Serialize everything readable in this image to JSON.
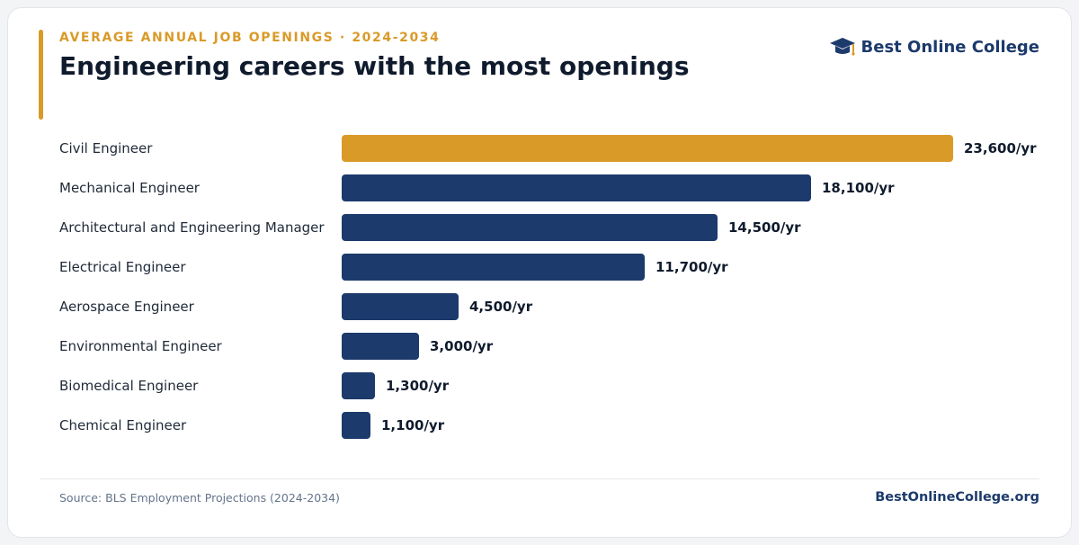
{
  "header": {
    "eyebrow": "AVERAGE ANNUAL JOB OPENINGS · 2024-2034",
    "title": "Engineering careers with the most openings"
  },
  "brand": {
    "name": "Best Online College",
    "icon": "graduation-cap-icon"
  },
  "colors": {
    "accent": "#da9a28",
    "primary": "#1c3a6b",
    "highlight_bar": "#da9a28",
    "bar": "#1c3a6b"
  },
  "chart_data": {
    "type": "bar",
    "orientation": "horizontal",
    "title": "Engineering careers with the most openings",
    "subtitle": "AVERAGE ANNUAL JOB OPENINGS · 2024-2034",
    "xlabel": "",
    "ylabel": "",
    "unit_suffix": "/yr",
    "grid": false,
    "categories": [
      "Civil Engineer",
      "Mechanical Engineer",
      "Architectural and Engineering Manager",
      "Electrical Engineer",
      "Aerospace Engineer",
      "Environmental Engineer",
      "Biomedical Engineer",
      "Chemical Engineer"
    ],
    "values": [
      23600,
      18100,
      14500,
      11700,
      4500,
      3000,
      1300,
      1100
    ],
    "value_labels": [
      "23,600/yr",
      "18,100/yr",
      "14,500/yr",
      "11,700/yr",
      "4,500/yr",
      "3,000/yr",
      "1,300/yr",
      "1,100/yr"
    ],
    "highlighted_index": 0,
    "xlim": [
      0,
      23600
    ]
  },
  "footer": {
    "source": "Source: BLS Employment Projections (2024-2034)",
    "site": "BestOnlineCollege.org"
  }
}
